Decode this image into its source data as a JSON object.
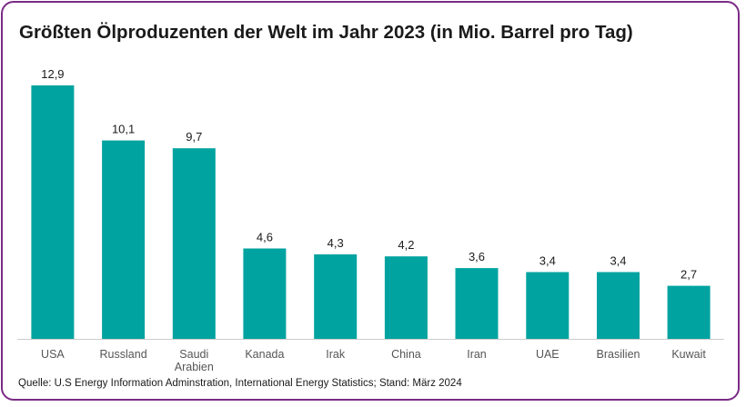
{
  "title": "Größten Ölproduzenten der Welt im Jahr 2023 (in Mio. Barrel pro Tag)",
  "source": "Quelle: U.S Energy Information Adminstration, International Energy Statistics; Stand: März 2024",
  "colors": {
    "bar": "#00a3a0",
    "frame": "#7b2b86",
    "axis": "#cccccc"
  },
  "chart_data": {
    "type": "bar",
    "categories": [
      "USA",
      "Russland",
      "Saudi Arabien",
      "Kanada",
      "Irak",
      "China",
      "Iran",
      "UAE",
      "Brasilien",
      "Kuwait"
    ],
    "category_lines": [
      [
        "USA"
      ],
      [
        "Russland"
      ],
      [
        "Saudi",
        "Arabien"
      ],
      [
        "Kanada"
      ],
      [
        "Irak"
      ],
      [
        "China"
      ],
      [
        "Iran"
      ],
      [
        "UAE"
      ],
      [
        "Brasilien"
      ],
      [
        "Kuwait"
      ]
    ],
    "values": [
      12.9,
      10.1,
      9.7,
      4.6,
      4.3,
      4.2,
      3.6,
      3.4,
      3.4,
      2.7
    ],
    "value_labels": [
      "12,9",
      "10,1",
      "9,7",
      "4,6",
      "4,3",
      "4,2",
      "3,6",
      "3,4",
      "3,4",
      "2,7"
    ],
    "ylim": [
      0,
      12.9
    ],
    "grid": false,
    "title": "Größten Ölproduzenten der Welt im Jahr 2023 (in Mio. Barrel pro Tag)",
    "xlabel": "",
    "ylabel": ""
  }
}
